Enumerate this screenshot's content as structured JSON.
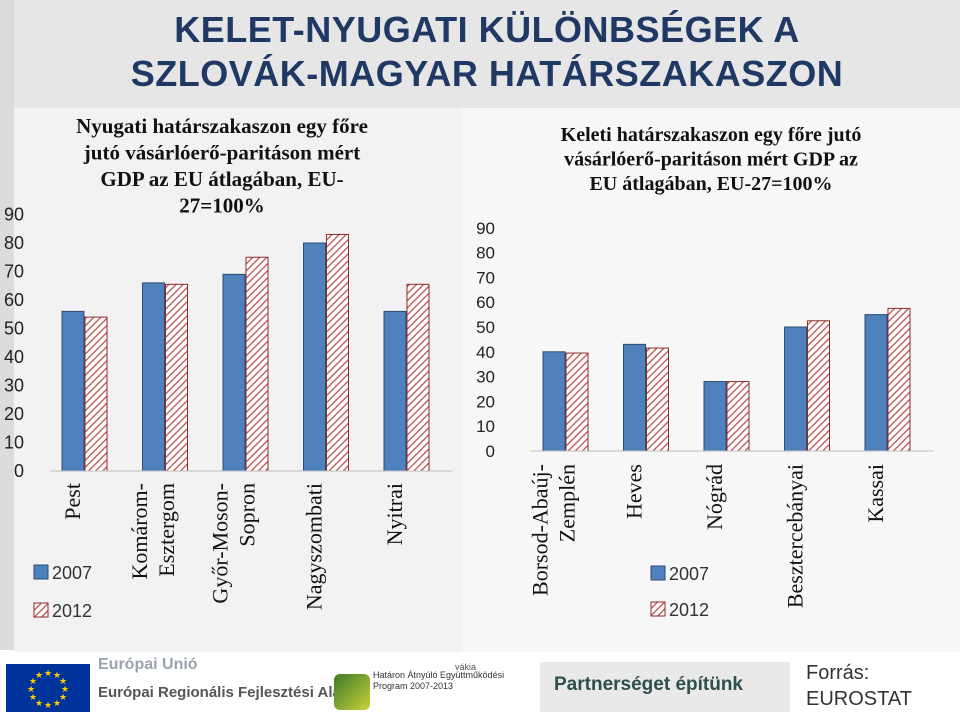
{
  "page": {
    "title_line1": "KELET-NYUGATI KÜLÖNBSÉGEK A",
    "title_line2": "SZLOVÁK-MAGYAR HATÁRSZAKASZON"
  },
  "colors": {
    "series_2007": "#4f81bd",
    "series_2012": "#c0504d",
    "title": "#1f3864"
  },
  "chart_data": [
    {
      "type": "bar",
      "title_lines": [
        "Nyugati határszakaszon egy főre",
        "jutó vásárlóerő-paritáson mért",
        "GDP az EU átlagában, EU-",
        "27=100%"
      ],
      "categories": [
        "Pest",
        "Komárom-Esztergom",
        "Győr-Moson-Sopron",
        "Nagyszombati",
        "Nyitrai"
      ],
      "category_lines": [
        [
          "Pest"
        ],
        [
          "Komárom-",
          "Esztergom"
        ],
        [
          "Győr-Moson-",
          "Sopron"
        ],
        [
          "Nagyszombati"
        ],
        [
          "Nyitrai"
        ]
      ],
      "series": [
        {
          "name": "2007",
          "values": [
            56,
            66,
            69,
            80,
            56
          ]
        },
        {
          "name": "2012",
          "values": [
            54,
            65.5,
            75,
            83,
            65.5
          ]
        }
      ],
      "ylim": [
        0,
        90
      ],
      "yticks": [
        0,
        10,
        20,
        30,
        40,
        50,
        60,
        70,
        80,
        90
      ],
      "legend": "bottom-left",
      "grid": false
    },
    {
      "type": "bar",
      "title_lines": [
        "Keleti határszakaszon egy főre jutó",
        "vásárlóerő-paritáson mért GDP az",
        "EU átlagában, EU-27=100%"
      ],
      "categories": [
        "Borsod-Abaúj-Zemplén",
        "Heves",
        "Nógrád",
        "Besztercebányai",
        "Kassai"
      ],
      "category_lines": [
        [
          "Borsod-Abaúj-",
          "Zemplén"
        ],
        [
          "Heves"
        ],
        [
          "Nógrád"
        ],
        [
          "Besztercebányai"
        ],
        [
          "Kassai"
        ]
      ],
      "series": [
        {
          "name": "2007",
          "values": [
            40,
            43,
            28,
            50,
            55
          ]
        },
        {
          "name": "2012",
          "values": [
            39.5,
            41.5,
            28,
            52.5,
            57.5
          ]
        }
      ],
      "ylim": [
        0,
        90
      ],
      "yticks": [
        0,
        10,
        20,
        30,
        40,
        50,
        60,
        70,
        80,
        90
      ],
      "legend": "bottom-center",
      "grid": false
    }
  ],
  "footer": {
    "eu_line1": "Európai Unió",
    "eu_line2": "Európai Regionális Fejlesztési Alap",
    "program_top": "vákia",
    "program_line1": "Határon Átnyúló Együttműködési",
    "program_line2": "Program 2007-2013",
    "partner_text": "Partnerséget építünk",
    "source_line1": "Forrás:",
    "source_line2": "EUROSTAT"
  }
}
